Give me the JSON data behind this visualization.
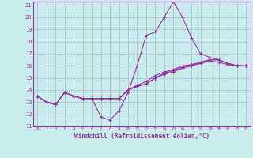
{
  "xlabel": "Windchill (Refroidissement éolien,°C)",
  "bg_color": "#c8ecec",
  "grid_color": "#b0b8d0",
  "line_color": "#993399",
  "xmin": 0,
  "xmax": 23,
  "ymin": 11,
  "ymax": 21,
  "series_main": [
    13.5,
    13.0,
    12.8,
    13.8,
    13.5,
    13.3,
    13.3,
    11.8,
    11.5,
    12.3,
    13.8,
    16.0,
    18.5,
    18.8,
    20.0,
    21.3,
    20.0,
    18.3,
    17.0,
    16.7,
    16.5,
    16.2,
    16.0,
    16.0
  ],
  "series_a": [
    13.5,
    13.0,
    12.8,
    13.8,
    13.5,
    13.3,
    13.3,
    13.3,
    13.3,
    13.3,
    14.0,
    14.3,
    14.5,
    15.0,
    15.3,
    15.5,
    15.8,
    16.0,
    16.2,
    16.5,
    16.5,
    16.2,
    16.0,
    16.0
  ],
  "series_b": [
    13.5,
    13.0,
    12.8,
    13.8,
    13.5,
    13.3,
    13.3,
    13.3,
    13.3,
    13.3,
    14.0,
    14.3,
    14.5,
    15.0,
    15.4,
    15.6,
    15.9,
    16.1,
    16.3,
    16.5,
    16.5,
    16.2,
    16.0,
    16.0
  ],
  "series_c": [
    13.5,
    13.0,
    12.8,
    13.8,
    13.5,
    13.3,
    13.3,
    13.3,
    13.3,
    13.3,
    14.0,
    14.4,
    14.7,
    15.2,
    15.5,
    15.7,
    16.0,
    16.1,
    16.2,
    16.4,
    16.3,
    16.1,
    16.0,
    16.0
  ]
}
